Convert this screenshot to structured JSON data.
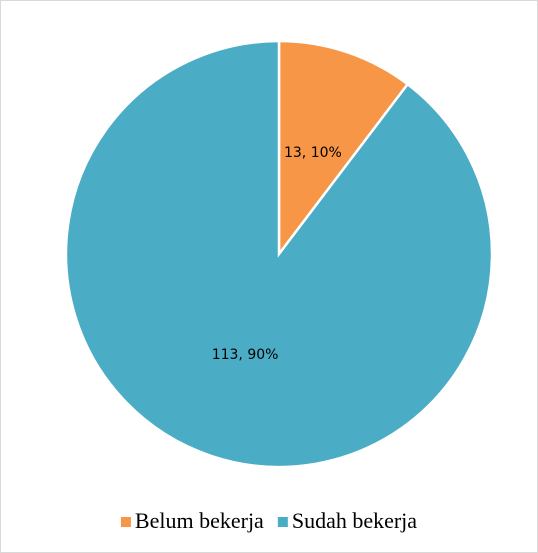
{
  "chart_data": {
    "type": "pie",
    "categories": [
      "Belum bekerja",
      "Sudah bekerja"
    ],
    "values": [
      13,
      113
    ],
    "value_labels": [
      "13, 10%",
      "113, 90%"
    ],
    "colors": [
      "#F79646",
      "#4BACC6"
    ],
    "legend": "bottom"
  }
}
